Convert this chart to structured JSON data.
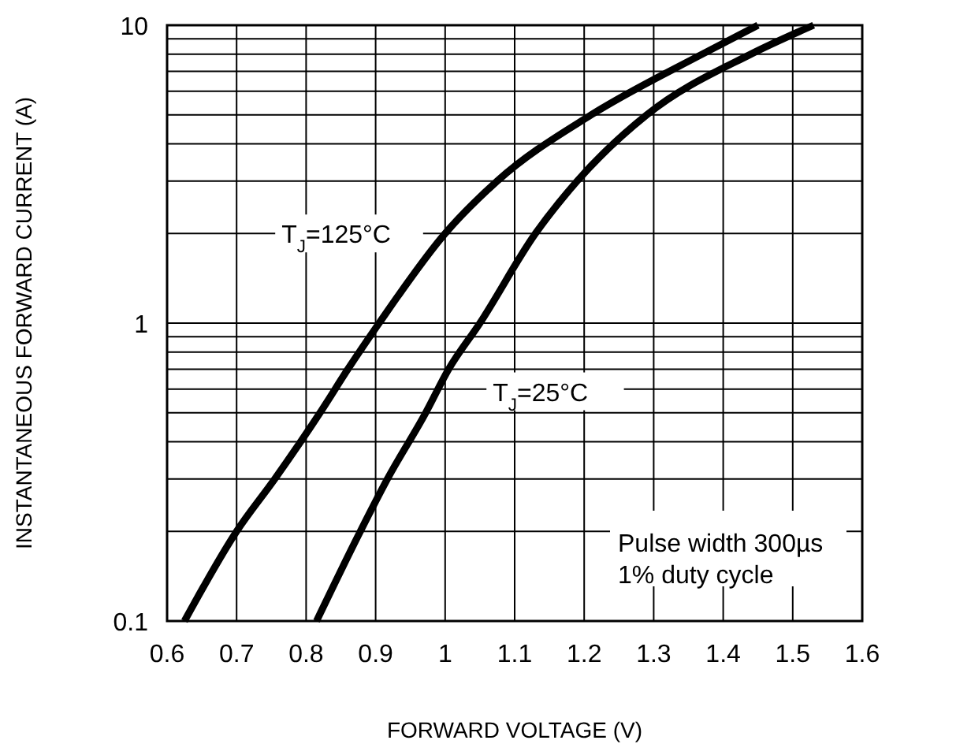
{
  "chart_data": {
    "type": "line",
    "xlabel": "FORWARD VOLTAGE (V)",
    "ylabel": "INSTANTANEOUS FORWARD CURRENT (A)",
    "log": "y",
    "grid": true,
    "line_style": "solid",
    "marker": "none",
    "xlim": [
      0.6,
      1.6
    ],
    "xticks": [
      0.6,
      0.7,
      0.8,
      0.9,
      1,
      1.1,
      1.2,
      1.3,
      1.4,
      1.5,
      1.6
    ],
    "ylim": [
      0.1,
      10
    ],
    "yticks": [
      0.1,
      1,
      10
    ],
    "series": [
      {
        "name": "T$_{J}$=125°C",
        "color": "#000000",
        "x": [
          0.625,
          0.7,
          0.755,
          0.82,
          0.86,
          0.905,
          1.0,
          1.075,
          1.21,
          1.37,
          1.45
        ],
        "values": [
          0.1,
          0.2,
          0.3,
          0.5,
          0.7,
          1,
          2,
          3,
          5,
          8,
          10
        ]
      },
      {
        "name": "T$_{J}$=25°C",
        "color": "#000000",
        "x": [
          0.815,
          0.878,
          0.917,
          0.972,
          1.005,
          1.05,
          1.13,
          1.19,
          1.29,
          1.44,
          1.53
        ],
        "values": [
          0.1,
          0.2,
          0.3,
          0.5,
          0.7,
          1,
          2,
          3,
          5,
          8,
          10
        ]
      }
    ],
    "annotations": [
      "Pulse width 300µs",
      "1% duty cycle"
    ]
  }
}
